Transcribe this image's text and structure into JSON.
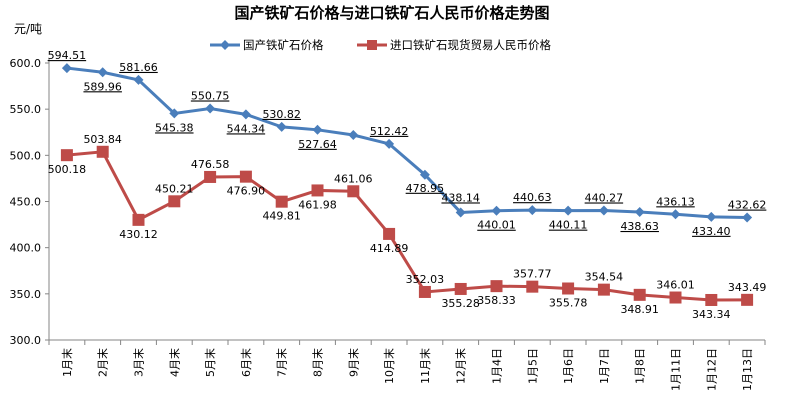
{
  "chart_data": {
    "type": "line",
    "title": "国产铁矿石价格与进口铁矿石人民币价格走势图",
    "ylabel": "元/吨",
    "ylim": [
      300,
      600
    ],
    "yticks": [
      "300.0",
      "350.0",
      "400.0",
      "450.0",
      "500.0",
      "550.0",
      "600.0"
    ],
    "grid": false,
    "legend": "top",
    "categories": [
      "1月末",
      "2月末",
      "3月末",
      "4月末",
      "5月末",
      "6月末",
      "7月末",
      "8月末",
      "9月末",
      "10月末",
      "11月末",
      "12月末",
      "1月4日",
      "1月5日",
      "1月6日",
      "1月7日",
      "1月8日",
      "1月11日",
      "1月12日",
      "1月13日"
    ],
    "series": [
      {
        "name": "国产铁矿石价格",
        "color": "#4a7ebb",
        "marker": "diamond",
        "values": [
          594.51,
          589.96,
          581.66,
          545.38,
          550.75,
          544.34,
          530.82,
          527.64,
          522,
          512.42,
          478.95,
          438.14,
          440.01,
          440.63,
          440.11,
          440.27,
          438.63,
          436.13,
          433.4,
          432.62
        ],
        "labels": [
          "594.51",
          "589.96",
          "581.66",
          "545.38",
          "550.75",
          "544.34",
          "530.82",
          "527.64",
          "",
          "512.42",
          "478.95",
          "438.14",
          "440.01",
          "440.63",
          "440.11",
          "440.27",
          "438.63",
          "436.13",
          "433.40",
          "432.62"
        ]
      },
      {
        "name": "进口铁矿石现货贸易人民币价格",
        "color": "#be4b48",
        "marker": "square",
        "values": [
          500.18,
          503.84,
          430.12,
          450.21,
          476.58,
          476.9,
          449.81,
          461.98,
          461.06,
          414.89,
          352.03,
          355.28,
          358.33,
          357.77,
          355.78,
          354.54,
          348.91,
          346.01,
          343.34,
          343.49
        ],
        "labels": [
          "500.18",
          "503.84",
          "430.12",
          "450.21",
          "476.58",
          "476.90",
          "449.81",
          "461.98",
          "461.06",
          "414.89",
          "352.03",
          "355.28",
          "358.33",
          "357.77",
          "355.78",
          "354.54",
          "348.91",
          "346.01",
          "343.34",
          "343.49"
        ]
      }
    ]
  }
}
